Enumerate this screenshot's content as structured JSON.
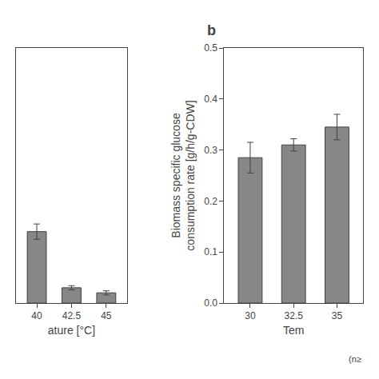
{
  "chart_data": [
    {
      "type": "bar",
      "categories": [
        "40",
        "42.5",
        "45"
      ],
      "values": [
        0.14,
        0.03,
        0.02
      ],
      "errors": [
        0.015,
        0.004,
        0.004
      ],
      "xlabel": "ature [°C]",
      "ylim": [
        0,
        0.5
      ],
      "tick_labels": "x",
      "color": "#878787",
      "grid": false
    },
    {
      "type": "bar",
      "title": "b",
      "categories": [
        "30",
        "32.5",
        "35"
      ],
      "values": [
        0.285,
        0.31,
        0.345
      ],
      "errors": [
        0.03,
        0.012,
        0.025
      ],
      "xlabel": "Tem",
      "ylabel": "Biomass specific glucose\nconsumption rate [g/h/g-CDW]",
      "ylim": [
        0,
        0.5
      ],
      "yticks": [
        {
          "value": 0,
          "label": "0.0"
        },
        0.1,
        0.2,
        0.3,
        0.4,
        0.5
      ],
      "color": "#878787",
      "grid": false,
      "annotations": [
        "(n≥"
      ]
    }
  ]
}
